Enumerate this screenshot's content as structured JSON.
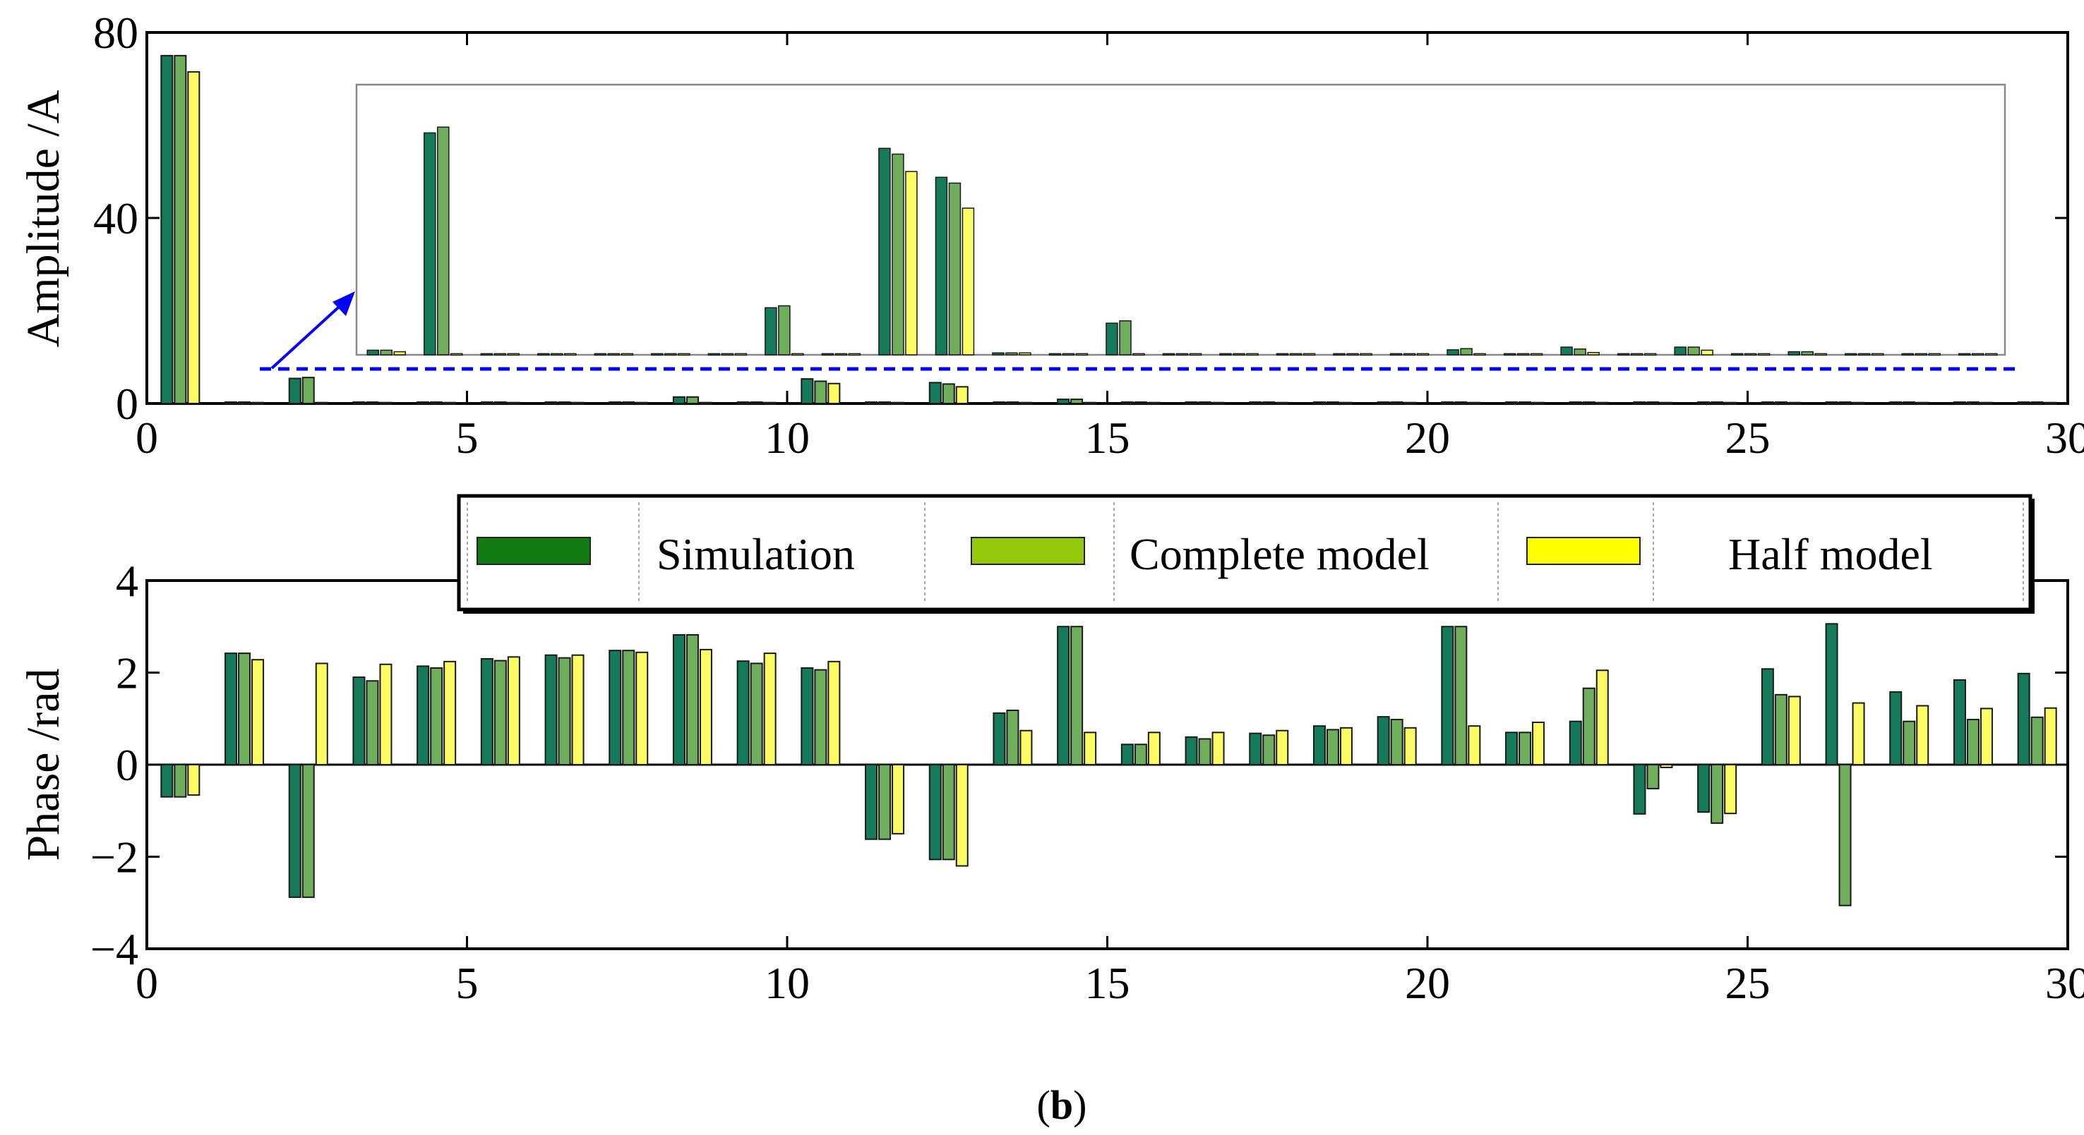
{
  "caption": {
    "open": "(",
    "label": "b",
    "close": ")"
  },
  "colors": {
    "simulation": "#147a5a",
    "complete": "#6fae5c",
    "half": "#fbfb64",
    "baseline": "#2b2b2b",
    "inset_link": "#0000ff",
    "legend_sim": "#127a12",
    "legend_complete": "#96c80a",
    "legend_half": "#ffff00"
  },
  "legend": {
    "items": [
      {
        "label": "Simulation"
      },
      {
        "label": "Complete model"
      },
      {
        "label": "Half model"
      }
    ]
  },
  "chart_data": [
    {
      "type": "bar",
      "title": "",
      "xlabel": "",
      "ylabel": "Amplitude /A",
      "xlim": [
        0,
        30
      ],
      "ylim": [
        0,
        80
      ],
      "xticks": [
        "0",
        "5",
        "10",
        "15",
        "20",
        "25",
        "30"
      ],
      "yticks": [
        "0",
        "40",
        "80"
      ],
      "categories": [
        0.5,
        1.5,
        2.5,
        3.5,
        4.5,
        5.5,
        6.5,
        7.5,
        8.5,
        9.5,
        10.5,
        11.5,
        12.5,
        13.5,
        14.5,
        15.5,
        16.5,
        17.5,
        18.5,
        19.5,
        20.5,
        21.5,
        22.5,
        23.5,
        24.5,
        25.5,
        26.5,
        27.5,
        28.5,
        29.5
      ],
      "series": [
        {
          "name": "Simulation",
          "values": [
            75,
            0.3,
            5.4,
            0.3,
            0.3,
            0.3,
            0.3,
            0.3,
            1.4,
            0.3,
            5.3,
            0.3,
            4.5,
            0.3,
            0.9,
            0.3,
            0.3,
            0.3,
            0.3,
            0.3,
            0.3,
            0.3,
            0.3,
            0.3,
            0.3,
            0.3,
            0.3,
            0.3,
            0.3,
            0.3
          ]
        },
        {
          "name": "Complete model",
          "values": [
            75,
            0.3,
            5.6,
            0.3,
            0.3,
            0.3,
            0.3,
            0.3,
            1.4,
            0.3,
            4.8,
            0.3,
            4.2,
            0.3,
            0.9,
            0.3,
            0.3,
            0.3,
            0.3,
            0.3,
            0.3,
            0.3,
            0.3,
            0.3,
            0.3,
            0.3,
            0.3,
            0.3,
            0.3,
            0.3
          ]
        },
        {
          "name": "Half model",
          "values": [
            71.5,
            0.2,
            0.2,
            0.2,
            0.2,
            0.2,
            0.2,
            0.2,
            0.2,
            0.2,
            4.3,
            0.2,
            3.6,
            0.2,
            0.2,
            0.2,
            0.2,
            0.2,
            0.2,
            0.2,
            0.2,
            0.2,
            0.2,
            0.2,
            0.2,
            0.2,
            0.2,
            0.2,
            0.2,
            0.2
          ]
        }
      ],
      "inset": {
        "description": "magnified view of harmonics 2-30 (range 0 to about 7 A)",
        "ylim": [
          0,
          7
        ],
        "categories": [
          1.5,
          2.5,
          3.5,
          4.5,
          5.5,
          6.5,
          7.5,
          8.5,
          9.5,
          10.5,
          11.5,
          12.5,
          13.5,
          14.5,
          15.5,
          16.5,
          17.5,
          18.5,
          19.5,
          20.5,
          21.5,
          22.5,
          23.5,
          24.5,
          25.5,
          26.5,
          27.5,
          28.5,
          29.5
        ],
        "series": [
          {
            "name": "Simulation",
            "values": [
              0.12,
              5.75,
              0.03,
              0.03,
              0.03,
              0.03,
              0.03,
              1.22,
              0.03,
              5.35,
              4.6,
              0.05,
              0.03,
              0.82,
              0.03,
              0.03,
              0.03,
              0.03,
              0.03,
              0.13,
              0.03,
              0.2,
              0.03,
              0.2,
              0.03,
              0.08,
              0.03,
              0.03,
              0.03
            ]
          },
          {
            "name": "Complete model",
            "values": [
              0.12,
              5.9,
              0.03,
              0.03,
              0.03,
              0.03,
              0.03,
              1.27,
              0.03,
              5.2,
              4.45,
              0.05,
              0.03,
              0.88,
              0.03,
              0.03,
              0.03,
              0.03,
              0.03,
              0.16,
              0.03,
              0.15,
              0.03,
              0.2,
              0.03,
              0.08,
              0.03,
              0.03,
              0.03
            ]
          },
          {
            "name": "Half model",
            "values": [
              0.08,
              0.03,
              0.03,
              0.03,
              0.03,
              0.03,
              0.03,
              0.03,
              0.03,
              4.75,
              3.8,
              0.05,
              0.03,
              0.03,
              0.03,
              0.03,
              0.03,
              0.03,
              0.03,
              0.03,
              0.03,
              0.06,
              0.03,
              0.12,
              0.03,
              0.03,
              0.03,
              0.03,
              0.03
            ]
          }
        ]
      }
    },
    {
      "type": "bar",
      "title": "",
      "xlabel": "",
      "ylabel": "Phase /rad",
      "xlim": [
        0,
        30
      ],
      "ylim": [
        -4,
        4
      ],
      "xticks": [
        "0",
        "5",
        "10",
        "15",
        "20",
        "25",
        "30"
      ],
      "yticks": [
        "−4",
        "−2",
        "0",
        "2",
        "4"
      ],
      "categories": [
        0.5,
        1.5,
        2.5,
        3.5,
        4.5,
        5.5,
        6.5,
        7.5,
        8.5,
        9.5,
        10.5,
        11.5,
        12.5,
        13.5,
        14.5,
        15.5,
        16.5,
        17.5,
        18.5,
        19.5,
        20.5,
        21.5,
        22.5,
        23.5,
        24.5,
        25.5,
        26.5,
        27.5,
        28.5,
        29.5
      ],
      "series": [
        {
          "name": "Simulation",
          "values": [
            -0.7,
            2.42,
            -2.88,
            1.9,
            2.14,
            2.3,
            2.38,
            2.48,
            2.82,
            2.25,
            2.1,
            -1.62,
            -2.06,
            1.12,
            3.0,
            0.44,
            0.6,
            0.68,
            0.84,
            1.04,
            3.0,
            0.7,
            0.94,
            -1.07,
            -1.03,
            2.08,
            3.06,
            1.58,
            1.84,
            1.98
          ]
        },
        {
          "name": "Complete model",
          "values": [
            -0.7,
            2.42,
            -2.88,
            1.82,
            2.1,
            2.26,
            2.32,
            2.48,
            2.82,
            2.2,
            2.06,
            -1.62,
            -2.06,
            1.18,
            3.0,
            0.44,
            0.56,
            0.64,
            0.76,
            0.98,
            3.0,
            0.7,
            1.66,
            -0.52,
            -1.27,
            1.52,
            -3.06,
            0.94,
            0.98,
            1.03
          ]
        },
        {
          "name": "Half model",
          "values": [
            -0.66,
            2.28,
            2.2,
            2.18,
            2.24,
            2.34,
            2.38,
            2.44,
            2.5,
            2.42,
            2.24,
            -1.5,
            -2.2,
            0.74,
            0.7,
            0.7,
            0.7,
            0.74,
            0.8,
            0.8,
            0.84,
            0.92,
            2.05,
            -0.06,
            -1.06,
            1.48,
            1.34,
            1.28,
            1.22,
            1.23
          ]
        }
      ]
    }
  ]
}
